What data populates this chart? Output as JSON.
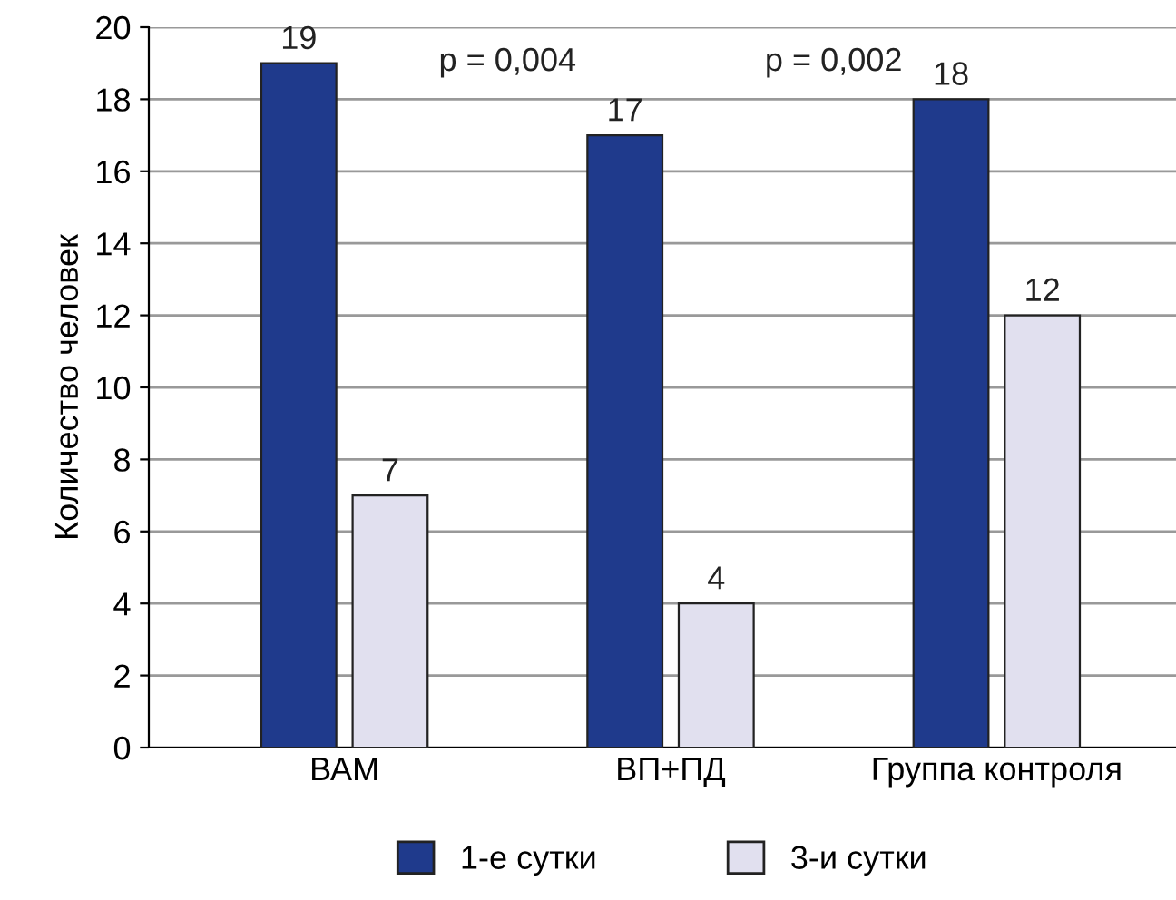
{
  "chart_data": {
    "type": "bar",
    "ylabel": "Количество человек",
    "categories": [
      "ВАМ",
      "ВП+ПД",
      "Группа контроля"
    ],
    "series": [
      {
        "name": "1-е сутки",
        "color": "#1f3a8c",
        "values": [
          19,
          17,
          18
        ]
      },
      {
        "name": "3-и сутки",
        "color": "#e1e0ef",
        "values": [
          7,
          4,
          12
        ]
      }
    ],
    "ylim": [
      0,
      20
    ],
    "yticks": [
      0,
      2,
      4,
      6,
      8,
      10,
      12,
      14,
      16,
      18,
      20
    ],
    "grid": "y",
    "legend": "bottom",
    "data_labels": true,
    "annotations": [
      "p = 0,004",
      "p = 0,002"
    ]
  }
}
